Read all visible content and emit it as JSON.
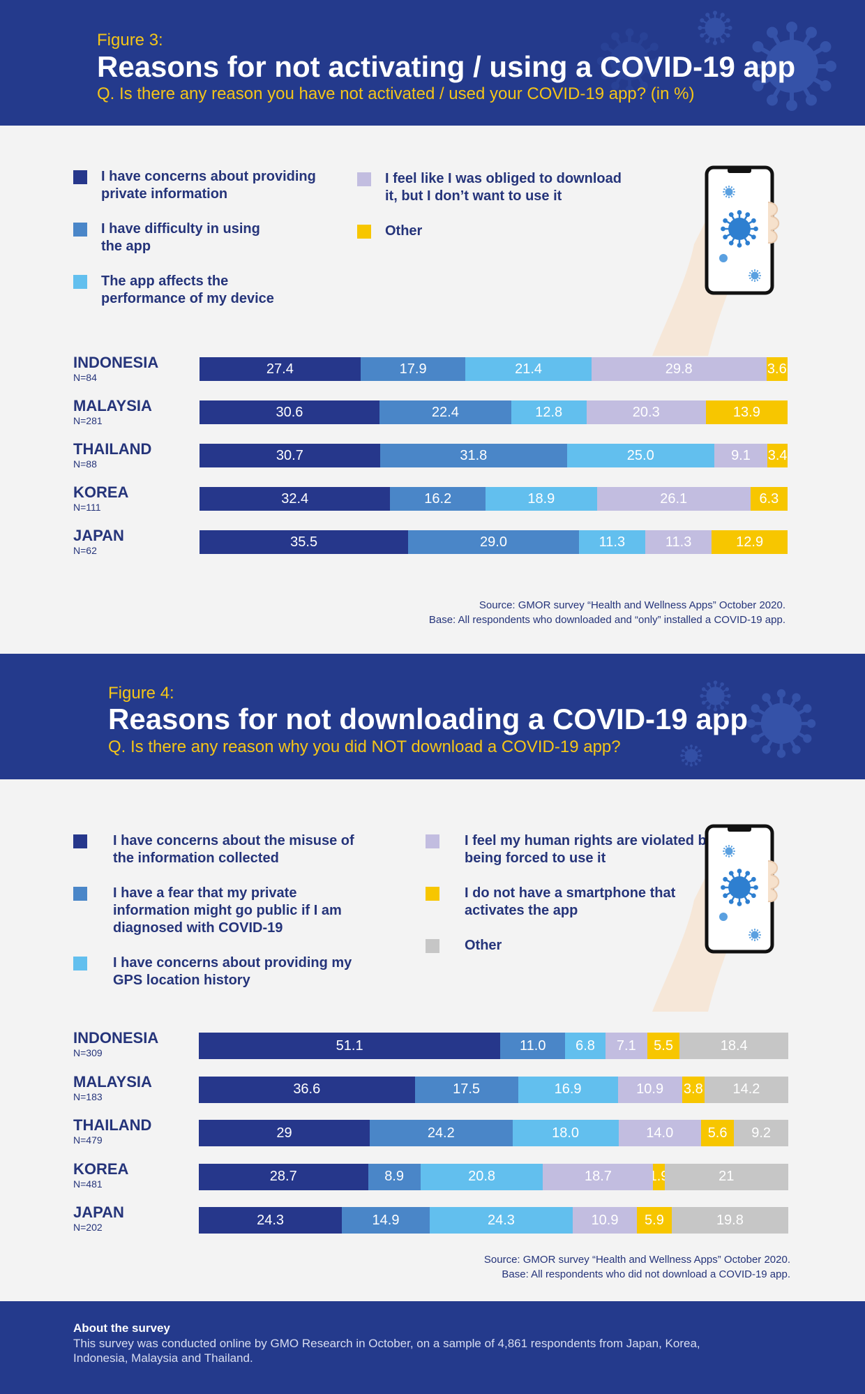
{
  "colors": {
    "header_bg": "#243a8c",
    "page_bg": "#f3f3f3",
    "accent_yellow": "#f5c518",
    "text_navy": "#25347a"
  },
  "icons": [
    "virus-icon",
    "phone-in-hand-illustration"
  ],
  "figure3": {
    "label": "Figure 3:",
    "title": "Reasons for not activating / using a COVID-19 app",
    "question": "Q. Is there any reason you have not activated / used your COVID-19 app? (in %)",
    "source_line1": "Source: GMOR survey “Health and Wellness Apps” October 2020.",
    "source_line2": "Base: All respondents who downloaded and “only” installed a COVID-19 app.",
    "legend": [
      {
        "label": "I have concerns about providing private information",
        "color": "#26378b"
      },
      {
        "label": "I have difficulty in using the app",
        "color": "#4a86c8"
      },
      {
        "label": "The app affects the performance of my device",
        "color": "#62bfee"
      },
      {
        "label": "I feel like I was obliged to download it, but I don’t want to use it",
        "color": "#c2bde0"
      },
      {
        "label": "Other",
        "color": "#f7c600"
      }
    ],
    "rows": [
      {
        "country": "INDONESIA",
        "n": "N=84"
      },
      {
        "country": "MALAYSIA",
        "n": "N=281"
      },
      {
        "country": "THAILAND",
        "n": "N=88"
      },
      {
        "country": "KOREA",
        "n": "N=111"
      },
      {
        "country": "JAPAN",
        "n": "N=62"
      }
    ]
  },
  "figure4": {
    "label": "Figure 4:",
    "title": "Reasons for not downloading a COVID-19 app",
    "question": "Q. Is there any reason why you did NOT download a COVID-19 app?",
    "source_line1": "Source: GMOR survey “Health and Wellness Apps” October 2020.",
    "source_line2": "Base: All respondents who did not download a COVID-19 app.",
    "legend": [
      {
        "label": "I have concerns about the misuse of the information collected",
        "color": "#26378b"
      },
      {
        "label": "I have a fear that my private information might go public if I am diagnosed with COVID-19",
        "color": "#4a86c8"
      },
      {
        "label": "I have concerns about providing my GPS location history",
        "color": "#62bfee"
      },
      {
        "label": "I feel my human rights are violated by being forced to use it",
        "color": "#c2bde0"
      },
      {
        "label": "I do not have a smartphone that activates the app",
        "color": "#f7c600"
      },
      {
        "label": "Other",
        "color": "#c6c6c6"
      }
    ],
    "rows": [
      {
        "country": "INDONESIA",
        "n": "N=309"
      },
      {
        "country": "MALAYSIA",
        "n": "N=183"
      },
      {
        "country": "THAILAND",
        "n": "N=479"
      },
      {
        "country": "KOREA",
        "n": "N=481"
      },
      {
        "country": "JAPAN",
        "n": "N=202"
      }
    ]
  },
  "about": {
    "title": "About the survey",
    "text": "This survey was conducted online by GMO Research in October, on a sample of 4,861 respondents from Japan, Korea, Indonesia, Malaysia and Thailand."
  },
  "chart_data": [
    {
      "type": "bar",
      "orientation": "horizontal",
      "stacked": true,
      "unit": "%",
      "title": "Reasons for not activating / using a COVID-19 app",
      "categories": [
        "INDONESIA",
        "MALAYSIA",
        "THAILAND",
        "KOREA",
        "JAPAN"
      ],
      "series": [
        {
          "name": "I have concerns about providing private information",
          "color": "#26378b",
          "values": [
            27.4,
            30.6,
            30.7,
            32.4,
            35.5
          ],
          "labels": [
            "27.4",
            "30.6",
            "30.7",
            "32.4",
            "35.5"
          ]
        },
        {
          "name": "I have difficulty in using the app",
          "color": "#4a86c8",
          "values": [
            17.9,
            22.4,
            31.8,
            16.2,
            29.0
          ],
          "labels": [
            "17.9",
            "22.4",
            "31.8",
            "16.2",
            "29.0"
          ]
        },
        {
          "name": "The app affects the performance of my device",
          "color": "#62bfee",
          "values": [
            21.4,
            12.8,
            25.0,
            18.9,
            11.3
          ],
          "labels": [
            "21.4",
            "12.8",
            "25.0",
            "18.9",
            "11.3"
          ]
        },
        {
          "name": "I feel like I was obliged to download it, but I don’t want to use it",
          "color": "#c2bde0",
          "values": [
            29.8,
            20.3,
            9.1,
            26.1,
            11.3
          ],
          "labels": [
            "29.8",
            "20.3",
            "9.1",
            "26.1",
            "11.3"
          ]
        },
        {
          "name": "Other",
          "color": "#f7c600",
          "values": [
            3.6,
            13.9,
            3.4,
            6.3,
            12.9
          ],
          "labels": [
            "3.6",
            "13.9",
            "3.4",
            "6.3",
            "12.9"
          ]
        }
      ],
      "legend_position": "top",
      "grid": false
    },
    {
      "type": "bar",
      "orientation": "horizontal",
      "stacked": true,
      "unit": "%",
      "title": "Reasons for not downloading a COVID-19 app",
      "categories": [
        "INDONESIA",
        "MALAYSIA",
        "THAILAND",
        "KOREA",
        "JAPAN"
      ],
      "series": [
        {
          "name": "I have concerns about the misuse of the information collected",
          "color": "#26378b",
          "values": [
            51.1,
            36.6,
            29,
            28.7,
            24.3
          ],
          "labels": [
            "51.1",
            "36.6",
            "29",
            "28.7",
            "24.3"
          ]
        },
        {
          "name": "I have a fear that my private information might go public if I am diagnosed with COVID-19",
          "color": "#4a86c8",
          "values": [
            11.0,
            17.5,
            24.2,
            8.9,
            14.9
          ],
          "labels": [
            "11.0",
            "17.5",
            "24.2",
            "8.9",
            "14.9"
          ]
        },
        {
          "name": "I have concerns about providing my GPS location history",
          "color": "#62bfee",
          "values": [
            6.8,
            16.9,
            18.0,
            20.8,
            24.3
          ],
          "labels": [
            "6.8",
            "16.9",
            "18.0",
            "20.8",
            "24.3"
          ]
        },
        {
          "name": "I feel my human rights are violated by being forced to use it",
          "color": "#c2bde0",
          "values": [
            7.1,
            10.9,
            14.0,
            18.7,
            10.9
          ],
          "labels": [
            "7.1",
            "10.9",
            "14.0",
            "18.7",
            "10.9"
          ]
        },
        {
          "name": "I do not have a smartphone that activates the app",
          "color": "#f7c600",
          "values": [
            5.5,
            3.8,
            5.6,
            1.9,
            5.9
          ],
          "labels": [
            "5.5",
            "3.8",
            "5.6",
            "1.9",
            "5.9"
          ]
        },
        {
          "name": "Other",
          "color": "#c6c6c6",
          "values": [
            18.4,
            14.2,
            9.2,
            21,
            19.8
          ],
          "labels": [
            "18.4",
            "14.2",
            "9.2",
            "21",
            "19.8"
          ]
        }
      ],
      "legend_position": "top",
      "grid": false
    }
  ]
}
